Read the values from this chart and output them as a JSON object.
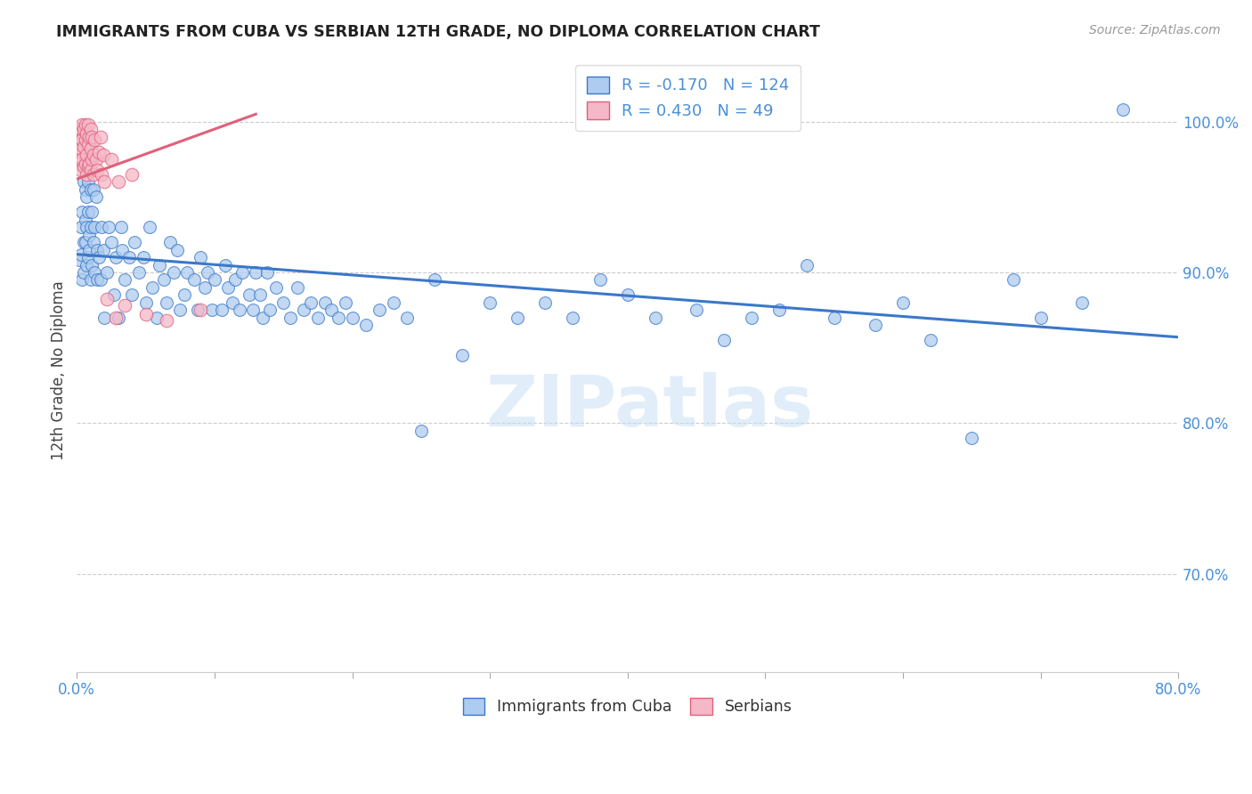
{
  "title": "IMMIGRANTS FROM CUBA VS SERBIAN 12TH GRADE, NO DIPLOMA CORRELATION CHART",
  "source": "Source: ZipAtlas.com",
  "ylabel": "12th Grade, No Diploma",
  "legend_label_blue": "Immigrants from Cuba",
  "legend_label_pink": "Serbians",
  "R_blue": -0.17,
  "N_blue": 124,
  "R_pink": 0.43,
  "N_pink": 49,
  "blue_color": "#aeccf0",
  "pink_color": "#f5b8c8",
  "line_blue": "#3a78c9",
  "line_pink": "#e0607a",
  "text_color_blue": "#4a90d9",
  "background": "#ffffff",
  "watermark": "ZIPatlas",
  "xmin": 0.0,
  "xmax": 0.8,
  "ymin": 0.635,
  "ymax": 1.035,
  "blue_line_x0": 0.0,
  "blue_line_y0": 0.912,
  "blue_line_x1": 0.8,
  "blue_line_y1": 0.857,
  "pink_line_x0": 0.0,
  "pink_line_y0": 0.962,
  "pink_line_x1": 0.13,
  "pink_line_y1": 1.005,
  "blue_scatter_x": [
    0.002,
    0.003,
    0.003,
    0.004,
    0.004,
    0.005,
    0.005,
    0.005,
    0.006,
    0.006,
    0.006,
    0.007,
    0.007,
    0.007,
    0.008,
    0.008,
    0.008,
    0.009,
    0.009,
    0.01,
    0.01,
    0.01,
    0.011,
    0.011,
    0.012,
    0.012,
    0.013,
    0.013,
    0.014,
    0.015,
    0.015,
    0.016,
    0.017,
    0.018,
    0.019,
    0.02,
    0.022,
    0.023,
    0.025,
    0.027,
    0.028,
    0.03,
    0.032,
    0.033,
    0.035,
    0.038,
    0.04,
    0.042,
    0.045,
    0.048,
    0.05,
    0.053,
    0.055,
    0.058,
    0.06,
    0.063,
    0.065,
    0.068,
    0.07,
    0.073,
    0.075,
    0.078,
    0.08,
    0.085,
    0.088,
    0.09,
    0.093,
    0.095,
    0.098,
    0.1,
    0.105,
    0.108,
    0.11,
    0.113,
    0.115,
    0.118,
    0.12,
    0.125,
    0.128,
    0.13,
    0.133,
    0.135,
    0.138,
    0.14,
    0.145,
    0.15,
    0.155,
    0.16,
    0.165,
    0.17,
    0.175,
    0.18,
    0.185,
    0.19,
    0.195,
    0.2,
    0.21,
    0.22,
    0.23,
    0.24,
    0.25,
    0.26,
    0.28,
    0.3,
    0.32,
    0.34,
    0.36,
    0.38,
    0.4,
    0.42,
    0.45,
    0.47,
    0.49,
    0.51,
    0.53,
    0.55,
    0.58,
    0.6,
    0.62,
    0.65,
    0.68,
    0.7,
    0.73,
    0.76
  ],
  "blue_scatter_y": [
    0.908,
    0.912,
    0.93,
    0.895,
    0.94,
    0.92,
    0.96,
    0.9,
    0.935,
    0.92,
    0.955,
    0.905,
    0.93,
    0.95,
    0.91,
    0.94,
    0.96,
    0.925,
    0.915,
    0.895,
    0.93,
    0.955,
    0.905,
    0.94,
    0.92,
    0.955,
    0.9,
    0.93,
    0.95,
    0.915,
    0.895,
    0.91,
    0.895,
    0.93,
    0.915,
    0.87,
    0.9,
    0.93,
    0.92,
    0.885,
    0.91,
    0.87,
    0.93,
    0.915,
    0.895,
    0.91,
    0.885,
    0.92,
    0.9,
    0.91,
    0.88,
    0.93,
    0.89,
    0.87,
    0.905,
    0.895,
    0.88,
    0.92,
    0.9,
    0.915,
    0.875,
    0.885,
    0.9,
    0.895,
    0.875,
    0.91,
    0.89,
    0.9,
    0.875,
    0.895,
    0.875,
    0.905,
    0.89,
    0.88,
    0.895,
    0.875,
    0.9,
    0.885,
    0.875,
    0.9,
    0.885,
    0.87,
    0.9,
    0.875,
    0.89,
    0.88,
    0.87,
    0.89,
    0.875,
    0.88,
    0.87,
    0.88,
    0.875,
    0.87,
    0.88,
    0.87,
    0.865,
    0.875,
    0.88,
    0.87,
    0.795,
    0.895,
    0.845,
    0.88,
    0.87,
    0.88,
    0.87,
    0.895,
    0.885,
    0.87,
    0.875,
    0.855,
    0.87,
    0.875,
    0.905,
    0.87,
    0.865,
    0.88,
    0.855,
    0.79,
    0.895,
    0.87,
    0.88,
    1.008
  ],
  "pink_scatter_x": [
    0.001,
    0.001,
    0.002,
    0.002,
    0.002,
    0.003,
    0.003,
    0.003,
    0.004,
    0.004,
    0.004,
    0.005,
    0.005,
    0.005,
    0.006,
    0.006,
    0.006,
    0.007,
    0.007,
    0.007,
    0.008,
    0.008,
    0.008,
    0.009,
    0.009,
    0.01,
    0.01,
    0.01,
    0.011,
    0.011,
    0.012,
    0.012,
    0.013,
    0.014,
    0.015,
    0.016,
    0.017,
    0.018,
    0.019,
    0.02,
    0.022,
    0.025,
    0.028,
    0.03,
    0.035,
    0.04,
    0.05,
    0.065,
    0.09
  ],
  "pink_scatter_y": [
    0.978,
    0.99,
    0.972,
    0.985,
    0.995,
    0.968,
    0.982,
    0.995,
    0.975,
    0.988,
    0.998,
    0.97,
    0.983,
    0.995,
    0.972,
    0.988,
    0.998,
    0.965,
    0.978,
    0.992,
    0.97,
    0.985,
    0.998,
    0.972,
    0.99,
    0.968,
    0.982,
    0.995,
    0.975,
    0.99,
    0.965,
    0.978,
    0.988,
    0.975,
    0.968,
    0.98,
    0.99,
    0.965,
    0.978,
    0.96,
    0.882,
    0.975,
    0.87,
    0.96,
    0.878,
    0.965,
    0.872,
    0.868,
    0.875
  ]
}
